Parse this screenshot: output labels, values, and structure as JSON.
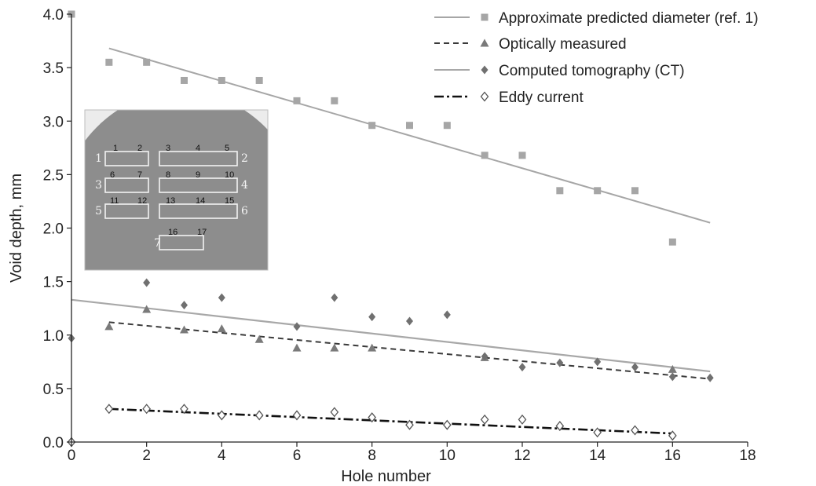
{
  "chart_data": {
    "type": "scatter",
    "xlabel": "Hole number",
    "ylabel": "Void depth, mm",
    "xlim": [
      0,
      18
    ],
    "ylim": [
      0,
      4
    ],
    "xticks": [
      "0",
      "2",
      "4",
      "6",
      "8",
      "10",
      "12",
      "14",
      "16",
      "18"
    ],
    "yticks": [
      "0.0",
      "0.5",
      "1.0",
      "1.5",
      "2.0",
      "2.5",
      "3.0",
      "3.5",
      "4.0"
    ],
    "grid": false,
    "legend_position": "top-right",
    "series": [
      {
        "name": "Approximate predicted diameter (ref. 1)",
        "marker": "square",
        "color": "#a6a6a6",
        "points": [
          [
            0,
            4.0
          ],
          [
            1,
            3.55
          ],
          [
            2,
            3.55
          ],
          [
            3,
            3.38
          ],
          [
            4,
            3.38
          ],
          [
            5,
            3.38
          ],
          [
            6,
            3.19
          ],
          [
            7,
            3.19
          ],
          [
            8,
            2.96
          ],
          [
            9,
            2.96
          ],
          [
            10,
            2.96
          ],
          [
            11,
            2.68
          ],
          [
            12,
            2.68
          ],
          [
            13,
            2.35
          ],
          [
            14,
            2.35
          ],
          [
            15,
            2.35
          ],
          [
            16,
            1.87
          ]
        ],
        "trend": {
          "style": "solid",
          "color": "#a6a6a6",
          "from": [
            1,
            3.68
          ],
          "to": [
            17,
            2.05
          ]
        }
      },
      {
        "name": "Optically measured",
        "marker": "triangle",
        "color": "#7a7a7a",
        "points": [
          [
            1,
            1.08
          ],
          [
            2,
            1.24
          ],
          [
            3,
            1.05
          ],
          [
            4,
            1.06
          ],
          [
            5,
            0.96
          ],
          [
            6,
            0.88
          ],
          [
            7,
            0.88
          ],
          [
            8,
            0.88
          ],
          [
            11,
            0.79
          ],
          [
            16,
            0.68
          ]
        ],
        "trend": {
          "style": "dashed",
          "color": "#3a3a3a",
          "from": [
            1,
            1.12
          ],
          "to": [
            17,
            0.59
          ]
        }
      },
      {
        "name": "Computed tomography (CT)",
        "marker": "diamond",
        "color": "#707070",
        "points": [
          [
            0,
            0.97
          ],
          [
            2,
            1.49
          ],
          [
            3,
            1.28
          ],
          [
            4,
            1.35
          ],
          [
            6,
            1.08
          ],
          [
            7,
            1.35
          ],
          [
            8,
            1.17
          ],
          [
            9,
            1.13
          ],
          [
            10,
            1.19
          ],
          [
            11,
            0.8
          ],
          [
            12,
            0.7
          ],
          [
            13,
            0.74
          ],
          [
            14,
            0.75
          ],
          [
            15,
            0.7
          ],
          [
            16,
            0.61
          ],
          [
            17,
            0.6
          ]
        ],
        "trend": {
          "style": "dotted-solid",
          "color": "#a8a8a8",
          "from": [
            0,
            1.33
          ],
          "to": [
            17,
            0.66
          ]
        }
      },
      {
        "name": "Eddy current",
        "marker": "open-diamond",
        "color": "#555555",
        "points": [
          [
            0,
            0.0
          ],
          [
            1,
            0.31
          ],
          [
            2,
            0.31
          ],
          [
            3,
            0.31
          ],
          [
            4,
            0.25
          ],
          [
            5,
            0.25
          ],
          [
            6,
            0.25
          ],
          [
            7,
            0.28
          ],
          [
            8,
            0.23
          ],
          [
            9,
            0.16
          ],
          [
            10,
            0.16
          ],
          [
            11,
            0.21
          ],
          [
            12,
            0.21
          ],
          [
            13,
            0.15
          ],
          [
            14,
            0.09
          ],
          [
            15,
            0.11
          ],
          [
            16,
            0.06
          ]
        ],
        "trend": {
          "style": "dash-dot",
          "color": "#111111",
          "from": [
            1,
            0.31
          ],
          "to": [
            16,
            0.08
          ]
        }
      }
    ],
    "inset": {
      "hole_labels": [
        "1",
        "2",
        "3",
        "4",
        "5",
        "6",
        "7",
        "8",
        "9",
        "10",
        "11",
        "12",
        "13",
        "14",
        "15",
        "16",
        "17"
      ],
      "group_labels": [
        "1",
        "2",
        "3",
        "4",
        "5",
        "6",
        "7"
      ]
    }
  }
}
